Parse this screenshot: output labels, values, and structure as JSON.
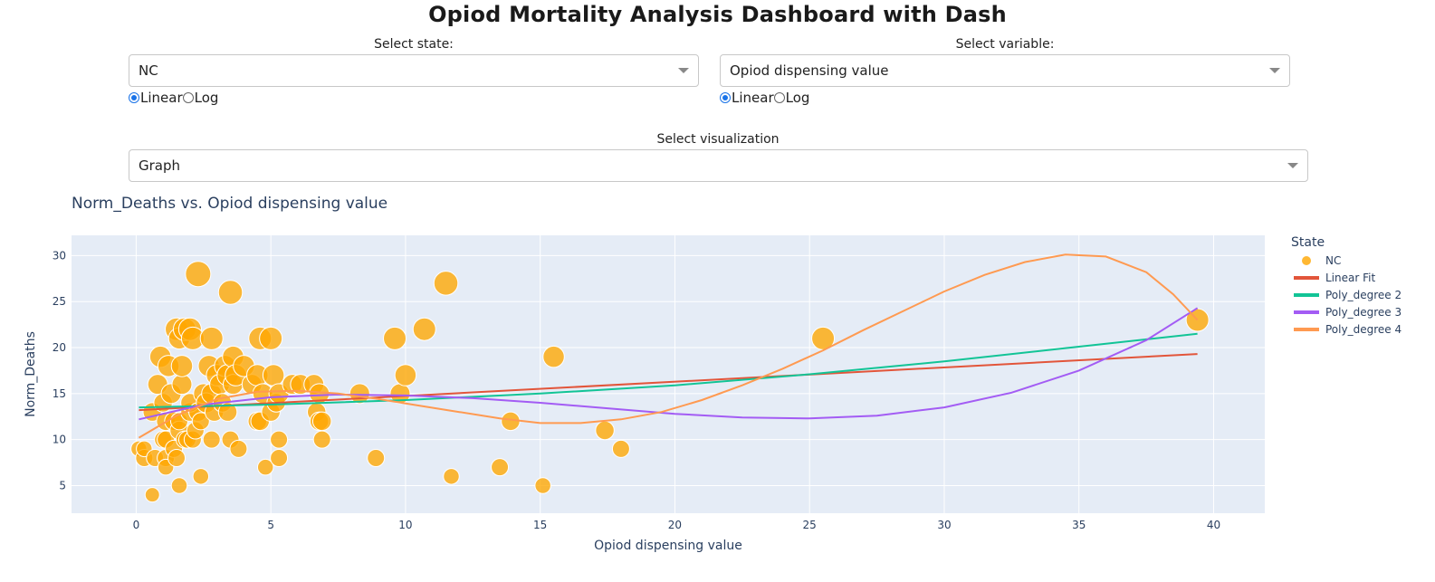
{
  "page": {
    "title": "Opiod Mortality Analysis Dashboard with Dash"
  },
  "controls": {
    "state_label": "Select state:",
    "state_value": "NC",
    "variable_label": "Select variable:",
    "variable_value": "Opiod dispensing value",
    "state_scale": {
      "options": [
        "Linear",
        "Log"
      ],
      "selected": "Linear"
    },
    "variable_scale": {
      "options": [
        "Linear",
        "Log"
      ],
      "selected": "Linear"
    },
    "visualization_label": "Select visualization",
    "visualization_value": "Graph"
  },
  "colors": {
    "plot_bg": "#e5ecf6",
    "scatter": "#ffa600",
    "linear": "#e2553a",
    "poly2": "#12c496",
    "poly3": "#a35cf4",
    "poly4": "#ff9a51",
    "text": "#2a3f5f"
  },
  "chart_data": {
    "type": "scatter",
    "title": "Norm_Deaths vs. Opiod dispensing value",
    "xlabel": "Opiod dispensing value",
    "ylabel": "Norm_Deaths",
    "xlim": [
      -2.4,
      41.9
    ],
    "ylim": [
      2,
      32.2
    ],
    "x_ticks": [
      0,
      5,
      10,
      15,
      20,
      25,
      30,
      35,
      40
    ],
    "y_ticks": [
      5,
      10,
      15,
      20,
      25,
      30
    ],
    "grid": true,
    "legend": {
      "title": "State",
      "placement": "right",
      "entries": [
        "NC",
        "Linear Fit",
        "Poly_degree 2",
        "Poly_degree 3",
        "Poly_degree 4"
      ]
    },
    "series": [
      {
        "name": "NC",
        "mode": "markers",
        "points": [
          [
            0.1,
            9
          ],
          [
            0.3,
            8
          ],
          [
            0.3,
            9
          ],
          [
            0.6,
            4
          ],
          [
            0.6,
            13
          ],
          [
            0.7,
            8
          ],
          [
            0.8,
            16
          ],
          [
            0.9,
            19
          ],
          [
            1,
            14
          ],
          [
            1,
            10
          ],
          [
            1.1,
            12
          ],
          [
            1.1,
            8
          ],
          [
            1.1,
            7
          ],
          [
            1.1,
            10
          ],
          [
            1.2,
            18
          ],
          [
            1.3,
            15
          ],
          [
            1.4,
            9
          ],
          [
            1.4,
            12
          ],
          [
            1.5,
            8
          ],
          [
            1.5,
            22
          ],
          [
            1.6,
            5
          ],
          [
            1.6,
            11
          ],
          [
            1.6,
            21
          ],
          [
            1.6,
            12
          ],
          [
            1.7,
            16
          ],
          [
            1.7,
            18
          ],
          [
            1.8,
            22
          ],
          [
            1.8,
            10
          ],
          [
            1.9,
            10
          ],
          [
            2,
            22
          ],
          [
            2,
            13
          ],
          [
            2,
            14
          ],
          [
            2.1,
            10
          ],
          [
            2.1,
            21
          ],
          [
            2.2,
            11
          ],
          [
            2.3,
            13
          ],
          [
            2.3,
            28
          ],
          [
            2.4,
            6
          ],
          [
            2.4,
            12
          ],
          [
            2.5,
            15
          ],
          [
            2.6,
            14
          ],
          [
            2.7,
            18
          ],
          [
            2.8,
            10
          ],
          [
            2.8,
            15
          ],
          [
            2.8,
            21
          ],
          [
            2.9,
            13
          ],
          [
            3,
            17
          ],
          [
            3.1,
            16
          ],
          [
            3.2,
            14
          ],
          [
            3.3,
            18
          ],
          [
            3.4,
            13
          ],
          [
            3.4,
            17
          ],
          [
            3.5,
            26
          ],
          [
            3.5,
            10
          ],
          [
            3.6,
            19
          ],
          [
            3.6,
            16
          ],
          [
            3.7,
            17
          ],
          [
            3.8,
            9
          ],
          [
            4,
            18
          ],
          [
            4.3,
            16
          ],
          [
            4.5,
            17
          ],
          [
            4.5,
            12
          ],
          [
            4.6,
            12
          ],
          [
            4.6,
            21
          ],
          [
            4.7,
            15
          ],
          [
            4.8,
            7
          ],
          [
            5,
            21
          ],
          [
            5,
            13
          ],
          [
            5.1,
            17
          ],
          [
            5.2,
            14
          ],
          [
            5.3,
            15
          ],
          [
            5.3,
            10
          ],
          [
            5.3,
            8
          ],
          [
            5.8,
            16
          ],
          [
            6.1,
            16
          ],
          [
            6.6,
            16
          ],
          [
            6.7,
            13
          ],
          [
            6.8,
            15
          ],
          [
            6.8,
            12
          ],
          [
            6.9,
            12
          ],
          [
            6.9,
            10
          ],
          [
            8.3,
            15
          ],
          [
            8.9,
            8
          ],
          [
            9.6,
            21
          ],
          [
            9.8,
            15
          ],
          [
            10,
            17
          ],
          [
            10.7,
            22
          ],
          [
            11.5,
            27
          ],
          [
            11.7,
            6
          ],
          [
            13.5,
            7
          ],
          [
            13.9,
            12
          ],
          [
            15.1,
            5
          ],
          [
            15.5,
            19
          ],
          [
            17.4,
            11
          ],
          [
            18,
            9
          ],
          [
            25.5,
            21
          ],
          [
            39.4,
            23
          ]
        ],
        "sizes": [
          0.5,
          0.6,
          0.5,
          0.4,
          0.7,
          0.6,
          0.8,
          0.9,
          0.7,
          0.6,
          0.7,
          0.6,
          0.5,
          0.6,
          0.9,
          0.8,
          0.6,
          0.7,
          0.6,
          1,
          0.5,
          0.7,
          0.9,
          0.6,
          0.8,
          0.9,
          1,
          0.6,
          0.6,
          1,
          0.7,
          0.7,
          0.6,
          1,
          0.6,
          0.7,
          1.2,
          0.5,
          0.6,
          0.8,
          0.8,
          0.9,
          0.6,
          0.8,
          1,
          0.7,
          0.9,
          0.8,
          0.7,
          0.9,
          0.7,
          0.9,
          1.1,
          0.6,
          0.9,
          0.8,
          0.9,
          0.6,
          0.9,
          0.8,
          0.9,
          0.7,
          0.7,
          1,
          0.8,
          0.5,
          1,
          0.7,
          0.9,
          0.7,
          0.8,
          0.6,
          0.6,
          0.8,
          0.8,
          0.8,
          0.7,
          0.8,
          0.7,
          0.7,
          0.6,
          0.8,
          0.6,
          1,
          0.8,
          0.9,
          1,
          1.1,
          0.5,
          0.6,
          0.7,
          0.5,
          0.9,
          0.7,
          0.6,
          1,
          1
        ]
      },
      {
        "name": "Linear Fit",
        "mode": "line",
        "points": [
          [
            0.1,
            13.2
          ],
          [
            39.4,
            19.3
          ]
        ]
      },
      {
        "name": "Poly_degree 2",
        "mode": "line",
        "points": [
          [
            0.1,
            13.5
          ],
          [
            5,
            13.8
          ],
          [
            10,
            14.3
          ],
          [
            15,
            15
          ],
          [
            20,
            15.9
          ],
          [
            25,
            17.1
          ],
          [
            30,
            18.5
          ],
          [
            35,
            20.1
          ],
          [
            39.4,
            21.5
          ]
        ]
      },
      {
        "name": "Poly_degree 3",
        "mode": "line",
        "points": [
          [
            0.1,
            12.2
          ],
          [
            2.5,
            13.8
          ],
          [
            5,
            14.6
          ],
          [
            7.5,
            14.9
          ],
          [
            10,
            14.8
          ],
          [
            12.5,
            14.5
          ],
          [
            15,
            14
          ],
          [
            17.5,
            13.4
          ],
          [
            20,
            12.8
          ],
          [
            22.5,
            12.4
          ],
          [
            25,
            12.3
          ],
          [
            27.5,
            12.6
          ],
          [
            30,
            13.5
          ],
          [
            32.5,
            15.1
          ],
          [
            35,
            17.5
          ],
          [
            37.5,
            20.8
          ],
          [
            39.4,
            24.3
          ]
        ]
      },
      {
        "name": "Poly_degree 4",
        "mode": "line",
        "points": [
          [
            0.1,
            10.2
          ],
          [
            1.5,
            12.6
          ],
          [
            3,
            14.4
          ],
          [
            4.5,
            15.2
          ],
          [
            6,
            15.3
          ],
          [
            7.5,
            15
          ],
          [
            9,
            14.4
          ],
          [
            10.5,
            13.7
          ],
          [
            12,
            13
          ],
          [
            13.5,
            12.3
          ],
          [
            15,
            11.8
          ],
          [
            16.5,
            11.8
          ],
          [
            18,
            12.2
          ],
          [
            19.5,
            13
          ],
          [
            21,
            14.3
          ],
          [
            22.5,
            15.9
          ],
          [
            24,
            17.7
          ],
          [
            25.5,
            19.7
          ],
          [
            27,
            21.9
          ],
          [
            28.5,
            24
          ],
          [
            30,
            26.1
          ],
          [
            31.5,
            27.9
          ],
          [
            33,
            29.3
          ],
          [
            34.5,
            30.1
          ],
          [
            36,
            29.9
          ],
          [
            37.5,
            28.2
          ],
          [
            38.5,
            25.8
          ],
          [
            39.4,
            23
          ]
        ]
      }
    ]
  }
}
